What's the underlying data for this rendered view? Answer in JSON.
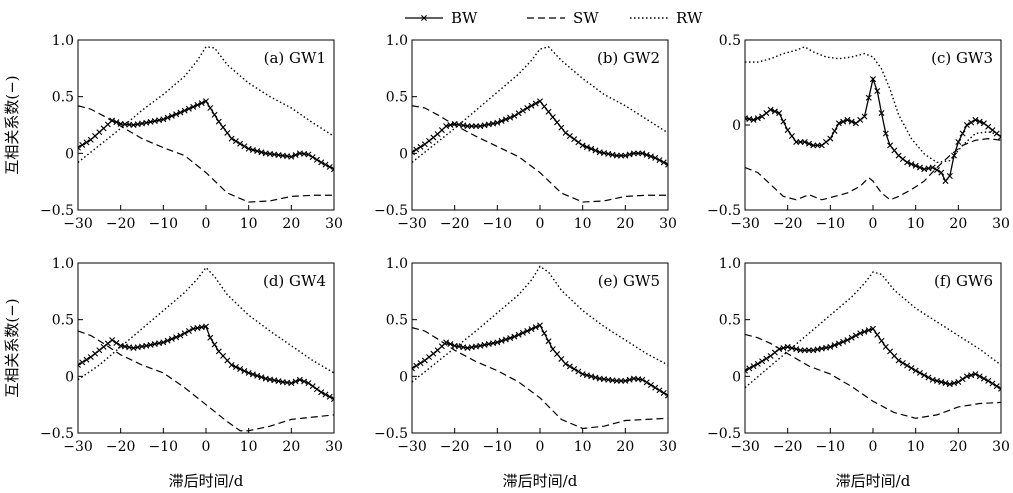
{
  "legend": {
    "position": "top-center",
    "items": [
      {
        "name": "BW",
        "style": "line-with-x-markers"
      },
      {
        "name": "SW",
        "style": "dashed"
      },
      {
        "name": "RW",
        "style": "dotted"
      }
    ]
  },
  "xlabel": "滞后时间/d",
  "ylabel": "互相关系数(−)",
  "chart_data": [
    {
      "type": "line",
      "title": "(a) GW1",
      "xlim": [
        -30,
        30
      ],
      "ylim": [
        -0.5,
        1.0
      ],
      "xticks": [
        -30,
        -20,
        -10,
        0,
        10,
        20,
        30
      ],
      "yticks": [
        -0.5,
        0,
        0.5,
        1.0
      ],
      "yticklabels": [
        "−0.5",
        "0",
        "0.5",
        "1.0"
      ],
      "grid": false,
      "series": [
        {
          "name": "BW",
          "x": [
            -30,
            -27,
            -24,
            -22,
            -20,
            -17,
            -14,
            -10,
            -6,
            -3,
            0,
            3,
            6,
            10,
            14,
            18,
            20,
            22,
            24,
            27,
            30
          ],
          "y": [
            0.05,
            0.12,
            0.22,
            0.29,
            0.26,
            0.25,
            0.27,
            0.3,
            0.36,
            0.41,
            0.46,
            0.28,
            0.13,
            0.04,
            0.0,
            -0.02,
            -0.03,
            0.0,
            -0.01,
            -0.08,
            -0.14
          ]
        },
        {
          "name": "SW",
          "x": [
            -30,
            -27,
            -24,
            -20,
            -15,
            -10,
            -5,
            0,
            5,
            10,
            15,
            20,
            25,
            30
          ],
          "y": [
            0.42,
            0.39,
            0.33,
            0.24,
            0.13,
            0.05,
            -0.02,
            -0.17,
            -0.35,
            -0.43,
            -0.42,
            -0.38,
            -0.37,
            -0.37
          ]
        },
        {
          "name": "RW",
          "x": [
            -30,
            -25,
            -20,
            -15,
            -10,
            -5,
            -2,
            0,
            2,
            5,
            10,
            15,
            20,
            25,
            30
          ],
          "y": [
            -0.08,
            0.07,
            0.22,
            0.38,
            0.52,
            0.68,
            0.82,
            0.94,
            0.93,
            0.78,
            0.62,
            0.5,
            0.4,
            0.27,
            0.15
          ]
        }
      ]
    },
    {
      "type": "line",
      "title": "(b) GW2",
      "xlim": [
        -30,
        30
      ],
      "ylim": [
        -0.5,
        1.0
      ],
      "xticks": [
        -30,
        -20,
        -10,
        0,
        10,
        20,
        30
      ],
      "yticks": [
        -0.5,
        0,
        0.5,
        1.0
      ],
      "yticklabels": [
        "−0.5",
        "0",
        "0.5",
        "1.0"
      ],
      "grid": false,
      "series": [
        {
          "name": "BW",
          "x": [
            -30,
            -27,
            -24,
            -22,
            -20,
            -17,
            -14,
            -10,
            -6,
            -3,
            0,
            3,
            6,
            10,
            14,
            18,
            20,
            22,
            24,
            27,
            30
          ],
          "y": [
            0.01,
            0.08,
            0.17,
            0.24,
            0.26,
            0.24,
            0.24,
            0.27,
            0.33,
            0.4,
            0.46,
            0.32,
            0.18,
            0.07,
            0.01,
            -0.02,
            -0.02,
            0.0,
            0.0,
            -0.04,
            -0.1
          ]
        },
        {
          "name": "SW",
          "x": [
            -30,
            -27,
            -24,
            -20,
            -15,
            -10,
            -5,
            0,
            5,
            10,
            15,
            20,
            25,
            30
          ],
          "y": [
            0.42,
            0.4,
            0.34,
            0.25,
            0.15,
            0.06,
            -0.03,
            -0.17,
            -0.35,
            -0.43,
            -0.42,
            -0.38,
            -0.37,
            -0.37
          ]
        },
        {
          "name": "RW",
          "x": [
            -30,
            -25,
            -20,
            -15,
            -10,
            -5,
            -2,
            0,
            2,
            5,
            10,
            15,
            20,
            25,
            30
          ],
          "y": [
            -0.08,
            0.07,
            0.22,
            0.38,
            0.54,
            0.7,
            0.82,
            0.92,
            0.94,
            0.82,
            0.66,
            0.52,
            0.42,
            0.3,
            0.18
          ]
        }
      ]
    },
    {
      "type": "line",
      "title": "(c) GW3",
      "xlim": [
        -30,
        30
      ],
      "ylim": [
        -0.5,
        0.5
      ],
      "xticks": [
        -30,
        -20,
        -10,
        0,
        10,
        20,
        30
      ],
      "yticks": [
        -0.5,
        0,
        0.5
      ],
      "yticklabels": [
        "−0.5",
        "0",
        "0.5"
      ],
      "grid": false,
      "series": [
        {
          "name": "BW",
          "x": [
            -30,
            -28,
            -26,
            -24,
            -22,
            -20,
            -18,
            -16,
            -14,
            -12,
            -10,
            -8,
            -6,
            -4,
            -2,
            0,
            1,
            2,
            3,
            4,
            6,
            8,
            10,
            12,
            14,
            16,
            17,
            18,
            19,
            20,
            22,
            24,
            26,
            28,
            30
          ],
          "y": [
            0.04,
            0.03,
            0.05,
            0.09,
            0.07,
            -0.03,
            -0.1,
            -0.1,
            -0.12,
            -0.12,
            -0.08,
            0.01,
            0.03,
            0.01,
            0.05,
            0.27,
            0.2,
            0.07,
            -0.05,
            -0.12,
            -0.18,
            -0.22,
            -0.24,
            -0.26,
            -0.25,
            -0.28,
            -0.33,
            -0.3,
            -0.18,
            -0.1,
            0.0,
            0.03,
            0.01,
            -0.03,
            -0.07
          ]
        },
        {
          "name": "SW",
          "x": [
            -30,
            -27,
            -24,
            -21,
            -18,
            -15,
            -12,
            -9,
            -6,
            -3,
            -1,
            0,
            2,
            4,
            6,
            9,
            12,
            15,
            18,
            21,
            24,
            27,
            30
          ],
          "y": [
            -0.25,
            -0.28,
            -0.35,
            -0.42,
            -0.44,
            -0.41,
            -0.44,
            -0.42,
            -0.4,
            -0.36,
            -0.31,
            -0.33,
            -0.4,
            -0.44,
            -0.42,
            -0.38,
            -0.33,
            -0.25,
            -0.18,
            -0.12,
            -0.09,
            -0.08,
            -0.09
          ]
        },
        {
          "name": "RW",
          "x": [
            -30,
            -27,
            -24,
            -21,
            -18,
            -16,
            -14,
            -11,
            -8,
            -5,
            -2,
            0,
            2,
            4,
            6,
            9,
            12,
            15,
            18,
            21,
            24,
            27,
            30
          ],
          "y": [
            0.37,
            0.37,
            0.39,
            0.42,
            0.44,
            0.46,
            0.43,
            0.4,
            0.39,
            0.4,
            0.42,
            0.4,
            0.33,
            0.21,
            0.06,
            -0.08,
            -0.17,
            -0.22,
            -0.21,
            -0.12,
            -0.05,
            -0.04,
            -0.06
          ]
        }
      ]
    },
    {
      "type": "line",
      "title": "(d) GW4",
      "xlim": [
        -30,
        30
      ],
      "ylim": [
        -0.5,
        1.0
      ],
      "xticks": [
        -30,
        -20,
        -10,
        0,
        10,
        20,
        30
      ],
      "yticks": [
        -0.5,
        0,
        0.5,
        1.0
      ],
      "yticklabels": [
        "−0.5",
        "0",
        "0.5",
        "1.0"
      ],
      "grid": false,
      "series": [
        {
          "name": "BW",
          "x": [
            -30,
            -27,
            -24,
            -22,
            -20,
            -17,
            -14,
            -10,
            -6,
            -3,
            0,
            1,
            3,
            6,
            10,
            14,
            18,
            20,
            22,
            24,
            27,
            30
          ],
          "y": [
            0.1,
            0.17,
            0.26,
            0.32,
            0.27,
            0.25,
            0.27,
            0.3,
            0.36,
            0.42,
            0.44,
            0.34,
            0.22,
            0.1,
            0.03,
            -0.02,
            -0.05,
            -0.06,
            -0.03,
            -0.06,
            -0.14,
            -0.2
          ]
        },
        {
          "name": "SW",
          "x": [
            -30,
            -27,
            -24,
            -20,
            -15,
            -10,
            -5,
            0,
            5,
            8,
            10,
            15,
            20,
            25,
            30
          ],
          "y": [
            0.4,
            0.36,
            0.29,
            0.19,
            0.1,
            0.03,
            -0.1,
            -0.25,
            -0.4,
            -0.48,
            -0.48,
            -0.44,
            -0.38,
            -0.36,
            -0.34
          ]
        },
        {
          "name": "RW",
          "x": [
            -30,
            -25,
            -20,
            -15,
            -10,
            -5,
            -2,
            0,
            2,
            5,
            10,
            15,
            20,
            25,
            30
          ],
          "y": [
            -0.03,
            0.1,
            0.26,
            0.42,
            0.58,
            0.74,
            0.86,
            0.96,
            0.88,
            0.72,
            0.54,
            0.4,
            0.27,
            0.14,
            0.03
          ]
        }
      ]
    },
    {
      "type": "line",
      "title": "(e) GW5",
      "xlim": [
        -30,
        30
      ],
      "ylim": [
        -0.5,
        1.0
      ],
      "xticks": [
        -30,
        -20,
        -10,
        0,
        10,
        20,
        30
      ],
      "yticks": [
        -0.5,
        0,
        0.5,
        1.0
      ],
      "yticklabels": [
        "−0.5",
        "0",
        "0.5",
        "1.0"
      ],
      "grid": false,
      "series": [
        {
          "name": "BW",
          "x": [
            -30,
            -27,
            -24,
            -22,
            -20,
            -17,
            -14,
            -10,
            -6,
            -3,
            0,
            3,
            6,
            10,
            14,
            18,
            20,
            22,
            24,
            27,
            30
          ],
          "y": [
            0.07,
            0.14,
            0.23,
            0.3,
            0.27,
            0.25,
            0.27,
            0.3,
            0.35,
            0.4,
            0.45,
            0.24,
            0.11,
            0.02,
            -0.02,
            -0.04,
            -0.04,
            -0.02,
            -0.03,
            -0.1,
            -0.17
          ]
        },
        {
          "name": "SW",
          "x": [
            -30,
            -27,
            -24,
            -20,
            -15,
            -10,
            -5,
            0,
            5,
            10,
            15,
            20,
            25,
            30
          ],
          "y": [
            0.43,
            0.4,
            0.33,
            0.23,
            0.13,
            0.05,
            -0.05,
            -0.19,
            -0.38,
            -0.46,
            -0.44,
            -0.39,
            -0.38,
            -0.37
          ]
        },
        {
          "name": "RW",
          "x": [
            -30,
            -25,
            -20,
            -15,
            -10,
            -5,
            -2,
            0,
            2,
            5,
            10,
            15,
            20,
            25,
            30
          ],
          "y": [
            -0.05,
            0.1,
            0.25,
            0.4,
            0.56,
            0.72,
            0.85,
            0.97,
            0.92,
            0.76,
            0.58,
            0.44,
            0.32,
            0.2,
            0.1
          ]
        }
      ]
    },
    {
      "type": "line",
      "title": "(f) GW6",
      "xlim": [
        -30,
        30
      ],
      "ylim": [
        -0.5,
        1.0
      ],
      "xticks": [
        -30,
        -20,
        -10,
        0,
        10,
        20,
        30
      ],
      "yticks": [
        -0.5,
        0,
        0.5,
        1.0
      ],
      "yticklabels": [
        "−0.5",
        "0",
        "0.5",
        "1.0"
      ],
      "grid": false,
      "series": [
        {
          "name": "BW",
          "x": [
            -30,
            -27,
            -24,
            -22,
            -20,
            -17,
            -14,
            -10,
            -6,
            -3,
            0,
            3,
            6,
            10,
            14,
            18,
            20,
            22,
            24,
            27,
            30
          ],
          "y": [
            0.05,
            0.11,
            0.18,
            0.24,
            0.26,
            0.23,
            0.23,
            0.26,
            0.32,
            0.38,
            0.42,
            0.26,
            0.14,
            0.05,
            -0.03,
            -0.07,
            -0.05,
            0.0,
            0.02,
            -0.04,
            -0.11
          ]
        },
        {
          "name": "SW",
          "x": [
            -30,
            -27,
            -24,
            -20,
            -15,
            -10,
            -5,
            0,
            5,
            10,
            15,
            20,
            25,
            30
          ],
          "y": [
            0.37,
            0.34,
            0.29,
            0.2,
            0.09,
            0.02,
            -0.09,
            -0.22,
            -0.32,
            -0.37,
            -0.34,
            -0.27,
            -0.24,
            -0.23
          ]
        },
        {
          "name": "RW",
          "x": [
            -30,
            -25,
            -20,
            -15,
            -10,
            -5,
            -2,
            0,
            2,
            5,
            10,
            15,
            20,
            25,
            30
          ],
          "y": [
            -0.1,
            0.06,
            0.22,
            0.38,
            0.54,
            0.7,
            0.82,
            0.92,
            0.9,
            0.76,
            0.6,
            0.48,
            0.36,
            0.24,
            0.1
          ]
        }
      ]
    }
  ]
}
